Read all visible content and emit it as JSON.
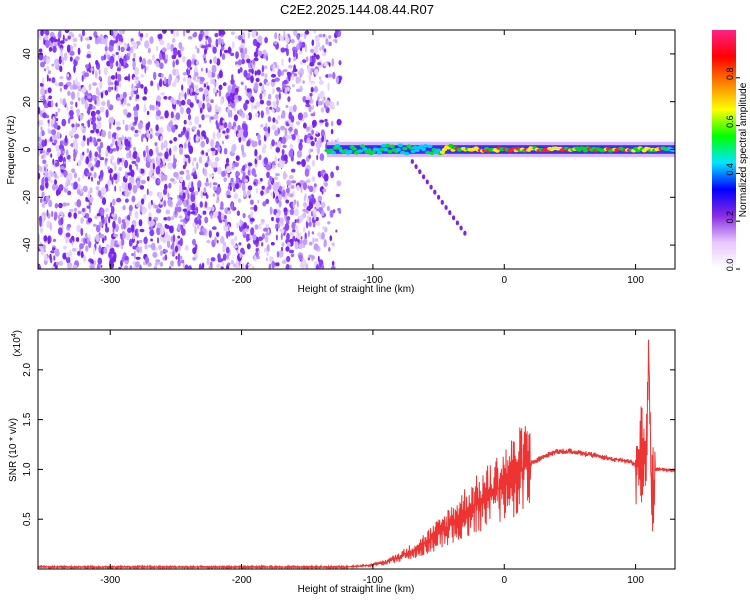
{
  "title": "C2E2.2025.144.08.44.R07",
  "chart_data": [
    {
      "type": "heatmap",
      "xlabel": "Height of straight line (km)",
      "ylabel": "Frequency (Hz)",
      "xlim": [
        -355,
        130
      ],
      "ylim": [
        -50,
        50
      ],
      "xticks": [
        -300,
        -200,
        -100,
        0,
        100
      ],
      "yticks": [
        -40,
        -20,
        0,
        20,
        40
      ],
      "colorbar": {
        "label": "Normalized spectral amplitude",
        "range": [
          0,
          1
        ],
        "ticks": [
          "0.0",
          "0.2",
          "0.4",
          "0.6",
          "0.8"
        ],
        "colors": [
          "#ffffff",
          "#e8c8ff",
          "#8a2be2",
          "#0000ff",
          "#00e5ff",
          "#00ff00",
          "#ffff00",
          "#ff8000",
          "#ff0000",
          "#ff2288"
        ]
      },
      "features": {
        "noise_region_x": [
          -355,
          -125
        ],
        "carrier_line_freq_hz": 0,
        "carrier_line_x": [
          -135,
          130
        ],
        "carrier_peak_x": [
          -50,
          120
        ],
        "secondary_trace": {
          "x": [
            -70,
            -30
          ],
          "freq_hz": [
            -5,
            -35
          ]
        }
      }
    },
    {
      "type": "line",
      "xlabel": "Height of straight line (km)",
      "ylabel": "SNR (10 * v/v)",
      "yscale_label": "(x10",
      "yscale_exp": "4",
      "xlim": [
        -355,
        130
      ],
      "ylim": [
        0,
        2.4
      ],
      "xticks": [
        -300,
        -200,
        -100,
        0,
        100
      ],
      "yticks": [
        "0.5",
        "1.0",
        "1.5",
        "2.0"
      ],
      "color": "#ee3333",
      "series": [
        {
          "x": [
            -355,
            -300,
            -250,
            -200,
            -150,
            -120,
            -100,
            -90,
            -80,
            -70,
            -60,
            -50,
            -40,
            -30,
            -20,
            -10,
            0,
            10,
            20,
            30,
            40,
            50,
            60,
            70,
            80,
            90,
            95,
            100,
            104,
            106,
            108,
            110,
            112,
            115,
            120,
            125,
            130
          ],
          "values": [
            0.02,
            0.02,
            0.02,
            0.02,
            0.02,
            0.02,
            0.04,
            0.07,
            0.12,
            0.18,
            0.26,
            0.35,
            0.46,
            0.57,
            0.66,
            0.75,
            0.86,
            0.97,
            1.06,
            1.13,
            1.18,
            1.18,
            1.16,
            1.14,
            1.11,
            1.09,
            1.08,
            1.05,
            1.1,
            1.2,
            0.9,
            2.35,
            0.6,
            1.0,
            1.0,
            0.99,
            0.99
          ]
        }
      ]
    }
  ]
}
